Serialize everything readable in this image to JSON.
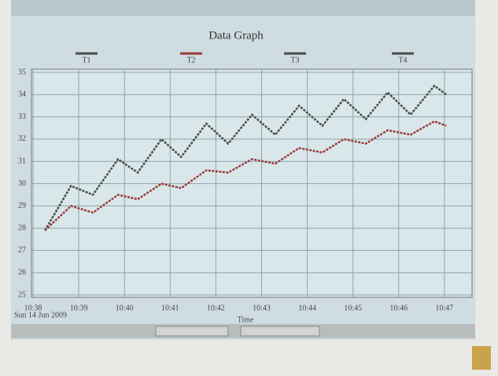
{
  "chart_data": {
    "type": "line",
    "title": "Data Graph",
    "x_label": "Time",
    "date": "Sun 14 Jun 2009",
    "x": [
      38.26,
      38.83,
      39.31,
      39.86,
      40.29,
      40.81,
      41.24,
      41.79,
      42.27,
      42.79,
      43.3,
      43.82,
      44.33,
      44.8,
      45.28,
      45.76,
      46.26,
      46.78,
      47.04
    ],
    "series": [
      {
        "name": "T1",
        "color": "#4a4a4a",
        "values": [
          27.9,
          29.9,
          29.5,
          31.1,
          30.5,
          32.0,
          31.2,
          32.7,
          31.8,
          33.1,
          32.2,
          33.5,
          32.6,
          33.8,
          32.9,
          34.1,
          33.1,
          34.4,
          34.0
        ]
      },
      {
        "name": "T2",
        "color": "#9a3a3a",
        "values": [
          27.9,
          29.0,
          28.7,
          29.5,
          29.3,
          30.0,
          29.8,
          30.6,
          30.5,
          31.1,
          30.9,
          31.6,
          31.4,
          32.0,
          31.8,
          32.4,
          32.2,
          32.8,
          32.6
        ]
      },
      {
        "name": "T3",
        "color": "#4a4a4a",
        "values": [
          null,
          null,
          null,
          null,
          null,
          null,
          null,
          null,
          null,
          null,
          null,
          null,
          null,
          null,
          null,
          null,
          null,
          null,
          null
        ]
      },
      {
        "name": "T4",
        "color": "#4a4a4a",
        "values": [
          null,
          null,
          null,
          null,
          null,
          null,
          null,
          null,
          null,
          null,
          null,
          null,
          null,
          null,
          null,
          null,
          null,
          null,
          null
        ]
      }
    ],
    "xlim": [
      38,
      47.1
    ],
    "xticks": [
      {
        "value": 38,
        "label": "10:38"
      },
      {
        "value": 39,
        "label": "10:39"
      },
      {
        "value": 40,
        "label": "10:40"
      },
      {
        "value": 41,
        "label": "10:41"
      },
      {
        "value": 42,
        "label": "10:42"
      },
      {
        "value": 43,
        "label": "10:43"
      },
      {
        "value": 44,
        "label": "10:44"
      },
      {
        "value": 45,
        "label": "10:45"
      },
      {
        "value": 46,
        "label": "10:46"
      },
      {
        "value": 47,
        "label": "10:47"
      }
    ],
    "ylim": [
      25,
      35
    ],
    "yticks": [
      25,
      26,
      27,
      28,
      29,
      30,
      31,
      32,
      33,
      34,
      35
    ],
    "grid": true
  }
}
